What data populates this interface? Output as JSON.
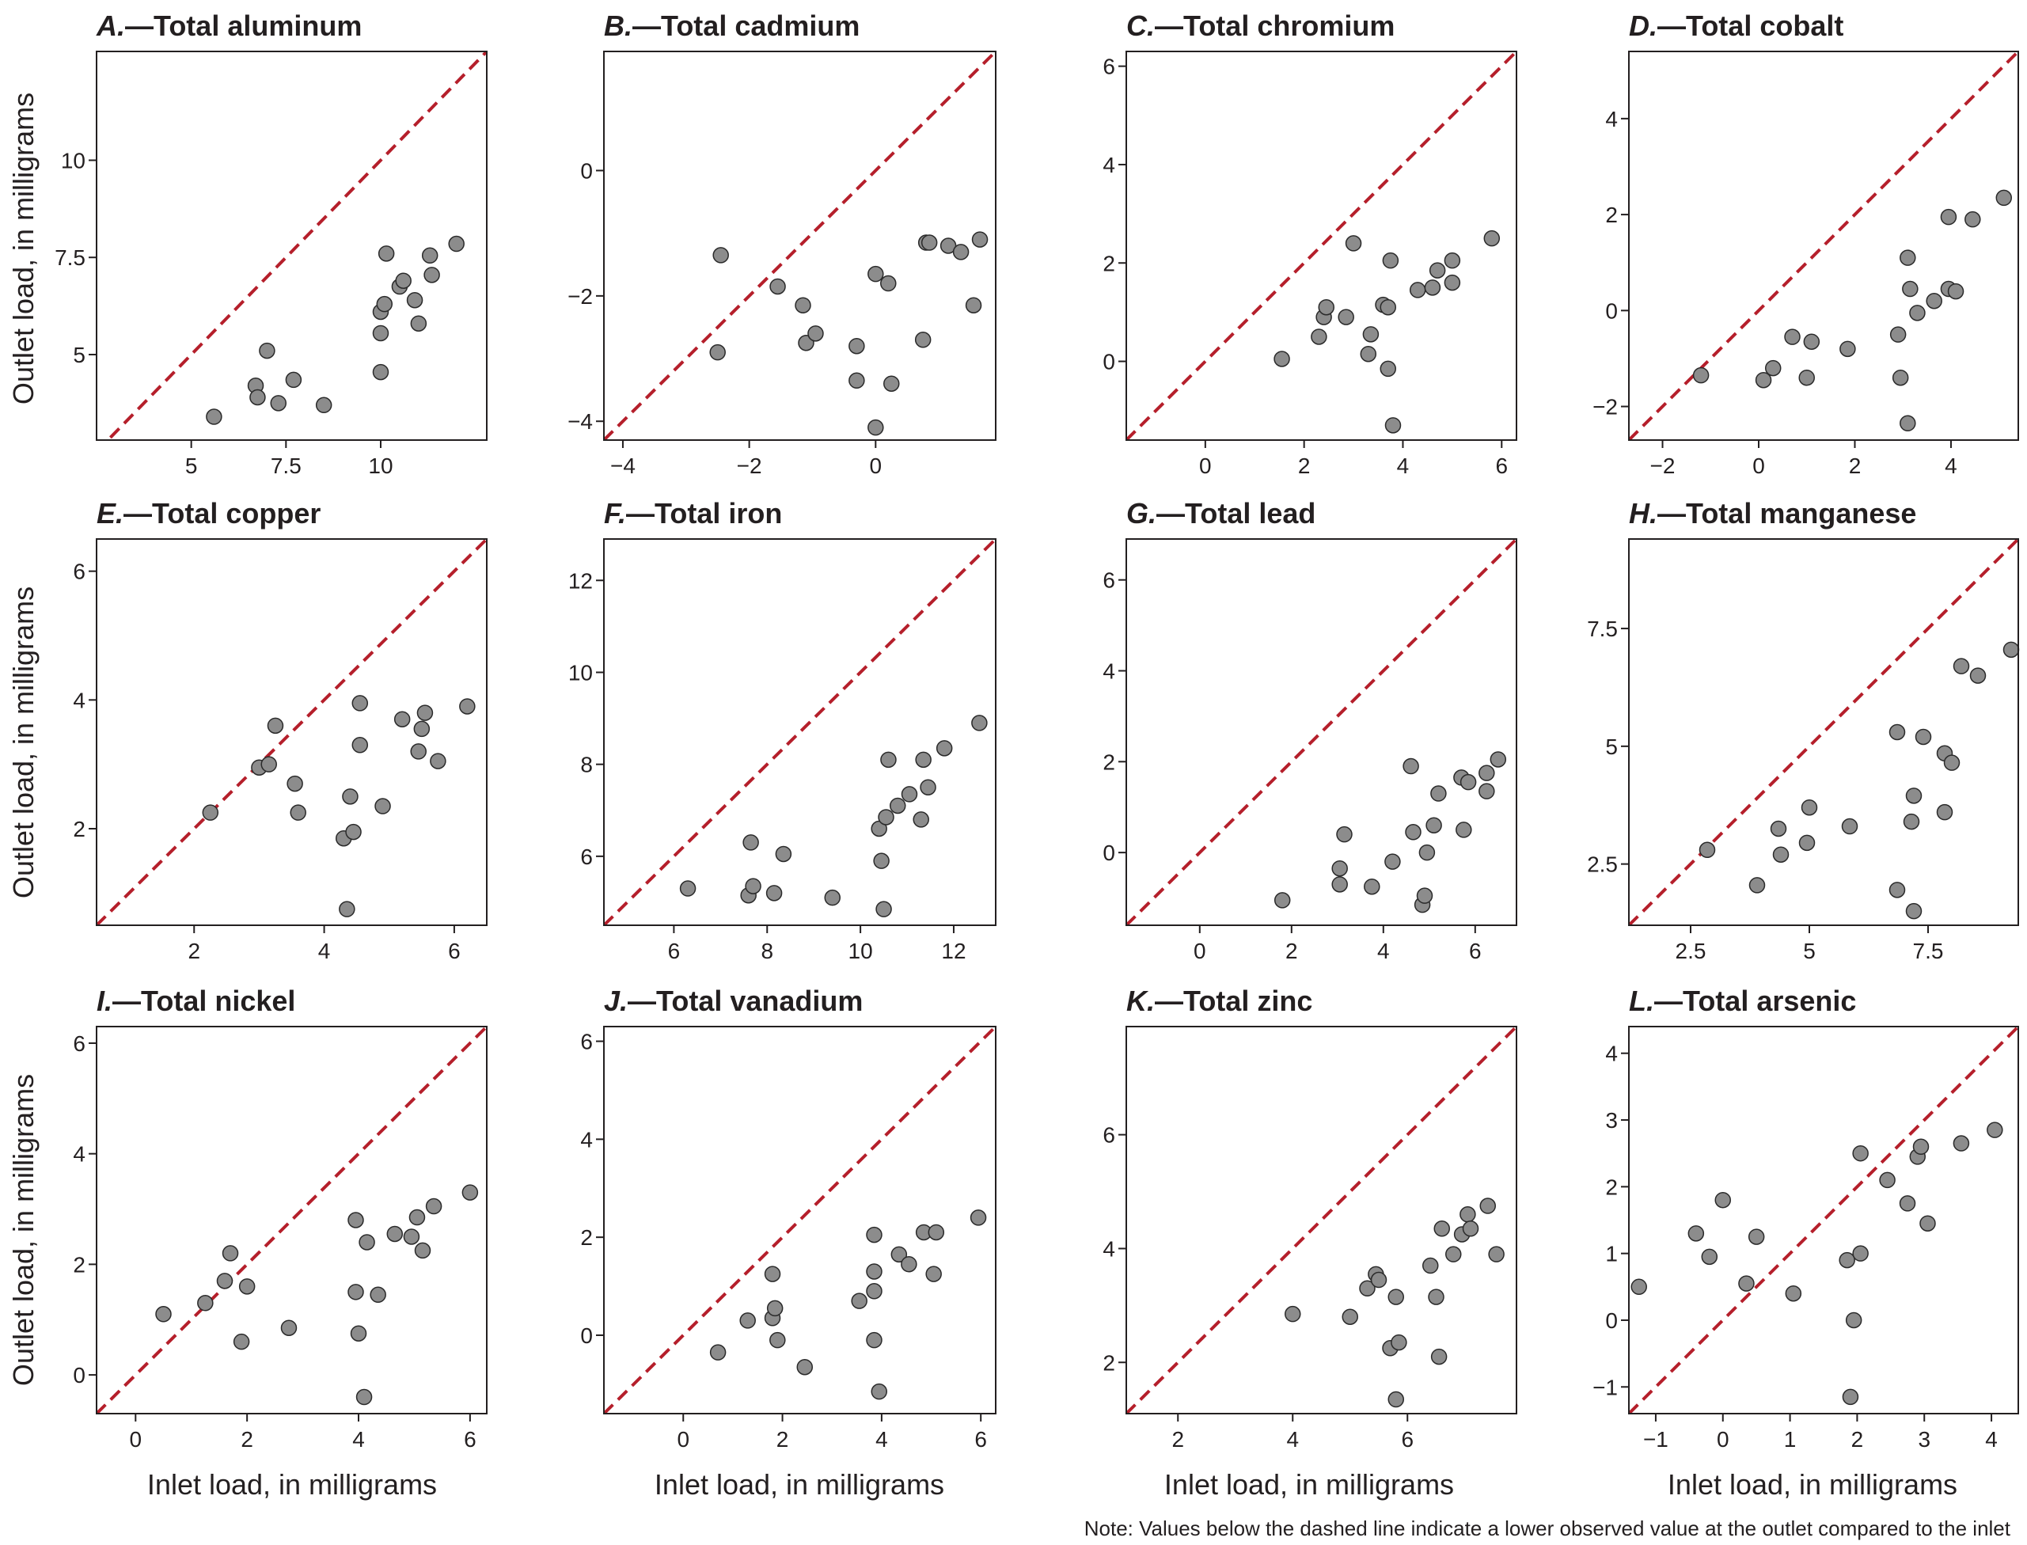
{
  "figure": {
    "y_axis_label": "Outlet load, in milligrams",
    "x_axis_label": "Inlet load, in milligrams",
    "note": "Note: Values below the dashed line indicate a lower observed value at the outlet compared to the inlet",
    "colors": {
      "point_fill": "#8c8c8c",
      "point_stroke": "#2a2a2a",
      "reference_line": "#b51f2b",
      "axis": "#231f20"
    }
  },
  "chart_data": [
    {
      "type": "scatter",
      "letter": "A.",
      "title": "Total aluminum",
      "xlim": [
        2.5,
        12.8
      ],
      "ylim": [
        2.8,
        12.8
      ],
      "xticks": [
        5,
        7.5,
        10
      ],
      "yticks": [
        5,
        7.5,
        10
      ],
      "reference_line": "y = x",
      "points": [
        [
          5.6,
          3.4
        ],
        [
          6.7,
          4.2
        ],
        [
          6.75,
          3.9
        ],
        [
          7.0,
          5.1
        ],
        [
          7.3,
          3.75
        ],
        [
          7.7,
          4.35
        ],
        [
          8.5,
          3.7
        ],
        [
          10.0,
          4.55
        ],
        [
          10.0,
          5.55
        ],
        [
          10.0,
          6.1
        ],
        [
          10.1,
          6.3
        ],
        [
          10.15,
          7.6
        ],
        [
          10.5,
          6.75
        ],
        [
          10.6,
          6.9
        ],
        [
          10.9,
          6.4
        ],
        [
          11.0,
          5.8
        ],
        [
          11.3,
          7.55
        ],
        [
          11.35,
          7.05
        ],
        [
          12.0,
          7.85
        ]
      ]
    },
    {
      "type": "scatter",
      "letter": "B.",
      "title": "Total cadmium",
      "xlim": [
        -4.3,
        1.9
      ],
      "ylim": [
        -4.3,
        1.9
      ],
      "xticks": [
        -4,
        -2,
        0
      ],
      "yticks": [
        -4,
        -2,
        0
      ],
      "reference_line": "y = x",
      "points": [
        [
          -2.5,
          -2.9
        ],
        [
          -2.45,
          -1.35
        ],
        [
          -1.55,
          -1.85
        ],
        [
          -1.15,
          -2.15
        ],
        [
          -1.1,
          -2.75
        ],
        [
          -0.95,
          -2.6
        ],
        [
          -0.3,
          -3.35
        ],
        [
          -0.3,
          -2.8
        ],
        [
          0.0,
          -1.65
        ],
        [
          0.0,
          -4.1
        ],
        [
          0.2,
          -1.8
        ],
        [
          0.25,
          -3.4
        ],
        [
          0.75,
          -2.7
        ],
        [
          0.8,
          -1.15
        ],
        [
          0.85,
          -1.15
        ],
        [
          1.15,
          -1.2
        ],
        [
          1.35,
          -1.3
        ],
        [
          1.55,
          -2.15
        ],
        [
          1.65,
          -1.1
        ]
      ]
    },
    {
      "type": "scatter",
      "letter": "C.",
      "title": "Total chromium",
      "xlim": [
        -1.6,
        6.3
      ],
      "ylim": [
        -1.6,
        6.3
      ],
      "xticks": [
        0,
        2,
        4,
        6
      ],
      "yticks": [
        0,
        2,
        4,
        6
      ],
      "reference_line": "y = x",
      "points": [
        [
          1.55,
          0.05
        ],
        [
          2.3,
          0.5
        ],
        [
          2.4,
          0.9
        ],
        [
          2.45,
          1.1
        ],
        [
          2.85,
          0.9
        ],
        [
          3.0,
          2.4
        ],
        [
          3.3,
          0.15
        ],
        [
          3.35,
          0.55
        ],
        [
          3.6,
          1.15
        ],
        [
          3.7,
          1.1
        ],
        [
          3.7,
          -0.15
        ],
        [
          3.75,
          2.05
        ],
        [
          3.8,
          -1.3
        ],
        [
          4.3,
          1.45
        ],
        [
          4.6,
          1.5
        ],
        [
          4.7,
          1.85
        ],
        [
          5.0,
          2.05
        ],
        [
          5.0,
          1.6
        ],
        [
          5.8,
          2.5
        ]
      ]
    },
    {
      "type": "scatter",
      "letter": "D.",
      "title": "Total cobalt",
      "xlim": [
        -2.7,
        5.4
      ],
      "ylim": [
        -2.7,
        5.4
      ],
      "xticks": [
        -2,
        0,
        2,
        4
      ],
      "yticks": [
        -2,
        0,
        2,
        4
      ],
      "reference_line": "y = x",
      "points": [
        [
          -1.2,
          -1.35
        ],
        [
          0.1,
          -1.45
        ],
        [
          0.3,
          -1.2
        ],
        [
          0.7,
          -0.55
        ],
        [
          1.0,
          -1.4
        ],
        [
          1.1,
          -0.65
        ],
        [
          1.85,
          -0.8
        ],
        [
          2.9,
          -0.5
        ],
        [
          2.95,
          -1.4
        ],
        [
          3.1,
          -2.35
        ],
        [
          3.1,
          1.1
        ],
        [
          3.15,
          0.45
        ],
        [
          3.3,
          -0.05
        ],
        [
          3.65,
          0.2
        ],
        [
          3.95,
          1.95
        ],
        [
          3.95,
          0.45
        ],
        [
          4.1,
          0.4
        ],
        [
          4.45,
          1.9
        ],
        [
          5.1,
          2.35
        ]
      ]
    },
    {
      "type": "scatter",
      "letter": "E.",
      "title": "Total copper",
      "xlim": [
        0.5,
        6.5
      ],
      "ylim": [
        0.5,
        6.5
      ],
      "xticks": [
        2,
        4,
        6
      ],
      "yticks": [
        2,
        4,
        6
      ],
      "reference_line": "y = x",
      "points": [
        [
          2.25,
          2.25
        ],
        [
          3.0,
          2.95
        ],
        [
          3.15,
          3.0
        ],
        [
          3.25,
          3.6
        ],
        [
          3.55,
          2.7
        ],
        [
          3.6,
          2.25
        ],
        [
          4.3,
          1.85
        ],
        [
          4.35,
          0.75
        ],
        [
          4.4,
          2.5
        ],
        [
          4.45,
          1.95
        ],
        [
          4.55,
          3.3
        ],
        [
          4.55,
          3.95
        ],
        [
          4.9,
          2.35
        ],
        [
          5.2,
          3.7
        ],
        [
          5.45,
          3.2
        ],
        [
          5.5,
          3.55
        ],
        [
          5.55,
          3.8
        ],
        [
          5.75,
          3.05
        ],
        [
          6.2,
          3.9
        ]
      ]
    },
    {
      "type": "scatter",
      "letter": "F.",
      "title": "Total iron",
      "xlim": [
        4.5,
        12.9
      ],
      "ylim": [
        4.5,
        12.9
      ],
      "xticks": [
        6,
        8,
        10,
        12
      ],
      "yticks": [
        6,
        8,
        10,
        12
      ],
      "reference_line": "y = x",
      "points": [
        [
          6.3,
          5.3
        ],
        [
          7.6,
          5.15
        ],
        [
          7.65,
          6.3
        ],
        [
          7.7,
          5.35
        ],
        [
          8.15,
          5.2
        ],
        [
          8.35,
          6.05
        ],
        [
          9.4,
          5.1
        ],
        [
          10.4,
          6.6
        ],
        [
          10.45,
          5.9
        ],
        [
          10.5,
          4.85
        ],
        [
          10.55,
          6.85
        ],
        [
          10.6,
          8.1
        ],
        [
          10.8,
          7.1
        ],
        [
          11.05,
          7.35
        ],
        [
          11.3,
          6.8
        ],
        [
          11.35,
          8.1
        ],
        [
          11.45,
          7.5
        ],
        [
          11.8,
          8.35
        ],
        [
          12.55,
          8.9
        ]
      ]
    },
    {
      "type": "scatter",
      "letter": "G.",
      "title": "Total lead",
      "xlim": [
        -1.6,
        6.9
      ],
      "ylim": [
        -1.6,
        6.9
      ],
      "xticks": [
        0,
        2,
        4,
        6
      ],
      "yticks": [
        0,
        2,
        4,
        6
      ],
      "reference_line": "y = x",
      "points": [
        [
          1.8,
          -1.05
        ],
        [
          3.05,
          -0.35
        ],
        [
          3.05,
          -0.7
        ],
        [
          3.15,
          0.4
        ],
        [
          3.75,
          -0.75
        ],
        [
          4.2,
          -0.2
        ],
        [
          4.6,
          1.9
        ],
        [
          4.65,
          0.45
        ],
        [
          4.85,
          -1.15
        ],
        [
          4.9,
          -0.95
        ],
        [
          4.95,
          0.0
        ],
        [
          5.1,
          0.6
        ],
        [
          5.2,
          1.3
        ],
        [
          5.7,
          1.65
        ],
        [
          5.75,
          0.5
        ],
        [
          5.85,
          1.55
        ],
        [
          6.25,
          1.75
        ],
        [
          6.25,
          1.35
        ],
        [
          6.5,
          2.05
        ]
      ]
    },
    {
      "type": "scatter",
      "letter": "H.",
      "title": "Total manganese",
      "xlim": [
        1.2,
        9.4
      ],
      "ylim": [
        1.2,
        9.4
      ],
      "xticks": [
        2.5,
        5,
        7.5
      ],
      "yticks": [
        2.5,
        5,
        7.5
      ],
      "reference_line": "y = x",
      "points": [
        [
          2.85,
          2.8
        ],
        [
          3.9,
          2.05
        ],
        [
          4.35,
          3.25
        ],
        [
          4.4,
          2.7
        ],
        [
          4.95,
          2.95
        ],
        [
          5.0,
          3.7
        ],
        [
          5.85,
          3.3
        ],
        [
          6.85,
          5.3
        ],
        [
          6.85,
          1.95
        ],
        [
          7.15,
          3.4
        ],
        [
          7.2,
          3.95
        ],
        [
          7.2,
          1.5
        ],
        [
          7.4,
          5.2
        ],
        [
          7.85,
          4.85
        ],
        [
          7.85,
          3.6
        ],
        [
          8.0,
          4.65
        ],
        [
          8.2,
          6.7
        ],
        [
          8.55,
          6.5
        ],
        [
          9.25,
          7.05
        ]
      ]
    },
    {
      "type": "scatter",
      "letter": "I.",
      "title": "Total nickel",
      "xlim": [
        -0.7,
        6.3
      ],
      "ylim": [
        -0.7,
        6.3
      ],
      "xticks": [
        0,
        2,
        4,
        6
      ],
      "yticks": [
        0,
        2,
        4,
        6
      ],
      "reference_line": "y = x",
      "points": [
        [
          0.5,
          1.1
        ],
        [
          1.25,
          1.3
        ],
        [
          1.6,
          1.7
        ],
        [
          1.7,
          2.2
        ],
        [
          1.9,
          0.6
        ],
        [
          2.0,
          1.6
        ],
        [
          2.75,
          0.85
        ],
        [
          3.95,
          1.5
        ],
        [
          3.95,
          2.8
        ],
        [
          4.0,
          0.75
        ],
        [
          4.1,
          -0.4
        ],
        [
          4.15,
          2.4
        ],
        [
          4.35,
          1.45
        ],
        [
          4.65,
          2.55
        ],
        [
          4.95,
          2.5
        ],
        [
          5.05,
          2.85
        ],
        [
          5.15,
          2.25
        ],
        [
          5.35,
          3.05
        ],
        [
          6.0,
          3.3
        ]
      ]
    },
    {
      "type": "scatter",
      "letter": "J.",
      "title": "Total vanadium",
      "xlim": [
        -1.6,
        6.3
      ],
      "ylim": [
        -1.6,
        6.3
      ],
      "xticks": [
        0,
        2,
        4,
        6
      ],
      "yticks": [
        0,
        2,
        4,
        6
      ],
      "reference_line": "y = x",
      "points": [
        [
          0.7,
          -0.35
        ],
        [
          1.3,
          0.3
        ],
        [
          1.8,
          1.25
        ],
        [
          1.8,
          0.35
        ],
        [
          1.85,
          0.55
        ],
        [
          1.9,
          -0.1
        ],
        [
          2.45,
          -0.65
        ],
        [
          3.55,
          0.7
        ],
        [
          3.85,
          0.9
        ],
        [
          3.85,
          1.3
        ],
        [
          3.85,
          -0.1
        ],
        [
          3.85,
          2.05
        ],
        [
          3.95,
          -1.15
        ],
        [
          4.35,
          1.65
        ],
        [
          4.55,
          1.45
        ],
        [
          4.85,
          2.1
        ],
        [
          5.05,
          1.25
        ],
        [
          5.1,
          2.1
        ],
        [
          5.95,
          2.4
        ]
      ]
    },
    {
      "type": "scatter",
      "letter": "K.",
      "title": "Total zinc",
      "xlim": [
        1.1,
        7.9
      ],
      "ylim": [
        1.1,
        7.9
      ],
      "xticks": [
        2,
        4,
        6
      ],
      "yticks": [
        2,
        4,
        6
      ],
      "reference_line": "y = x",
      "points": [
        [
          4.0,
          2.85
        ],
        [
          5.0,
          2.8
        ],
        [
          5.3,
          3.3
        ],
        [
          5.45,
          3.55
        ],
        [
          5.5,
          3.45
        ],
        [
          5.7,
          2.25
        ],
        [
          5.8,
          1.35
        ],
        [
          5.85,
          2.35
        ],
        [
          5.8,
          3.15
        ],
        [
          6.4,
          3.7
        ],
        [
          6.5,
          3.15
        ],
        [
          6.55,
          2.1
        ],
        [
          6.6,
          4.35
        ],
        [
          6.8,
          3.9
        ],
        [
          6.95,
          4.25
        ],
        [
          7.05,
          4.6
        ],
        [
          7.1,
          4.35
        ],
        [
          7.4,
          4.75
        ],
        [
          7.55,
          3.9
        ]
      ]
    },
    {
      "type": "scatter",
      "letter": "L.",
      "title": "Total arsenic",
      "xlim": [
        -1.4,
        4.4
      ],
      "ylim": [
        -1.4,
        4.4
      ],
      "xticks": [
        -1,
        0,
        1,
        2,
        3,
        4
      ],
      "yticks": [
        -1,
        0,
        1,
        2,
        3,
        4
      ],
      "reference_line": "y = x",
      "points": [
        [
          -1.25,
          0.5
        ],
        [
          -0.4,
          1.3
        ],
        [
          -0.2,
          0.95
        ],
        [
          0.0,
          1.8
        ],
        [
          0.35,
          0.55
        ],
        [
          0.5,
          1.25
        ],
        [
          1.05,
          0.4
        ],
        [
          1.85,
          0.9
        ],
        [
          1.9,
          -1.15
        ],
        [
          1.95,
          0.0
        ],
        [
          2.05,
          1.0
        ],
        [
          2.05,
          2.5
        ],
        [
          2.45,
          2.1
        ],
        [
          2.75,
          1.75
        ],
        [
          2.9,
          2.45
        ],
        [
          2.95,
          2.6
        ],
        [
          3.05,
          1.45
        ],
        [
          3.55,
          2.65
        ],
        [
          4.05,
          2.85
        ]
      ]
    }
  ]
}
